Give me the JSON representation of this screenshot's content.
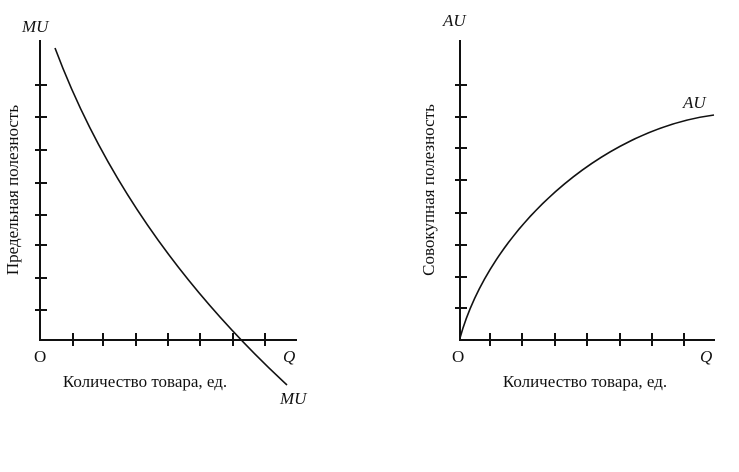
{
  "left": {
    "axis_top": "MU",
    "y_label": "Предельная полезность",
    "origin": "O",
    "axis_right": "Q",
    "x_label": "Количество товара, ед.",
    "curve_label": "MU"
  },
  "right": {
    "axis_top": "AU",
    "y_label": "Совокупная полезность",
    "origin": "O",
    "axis_right": "Q",
    "x_label": "Количество товара, ед.",
    "curve_label": "AU"
  }
}
